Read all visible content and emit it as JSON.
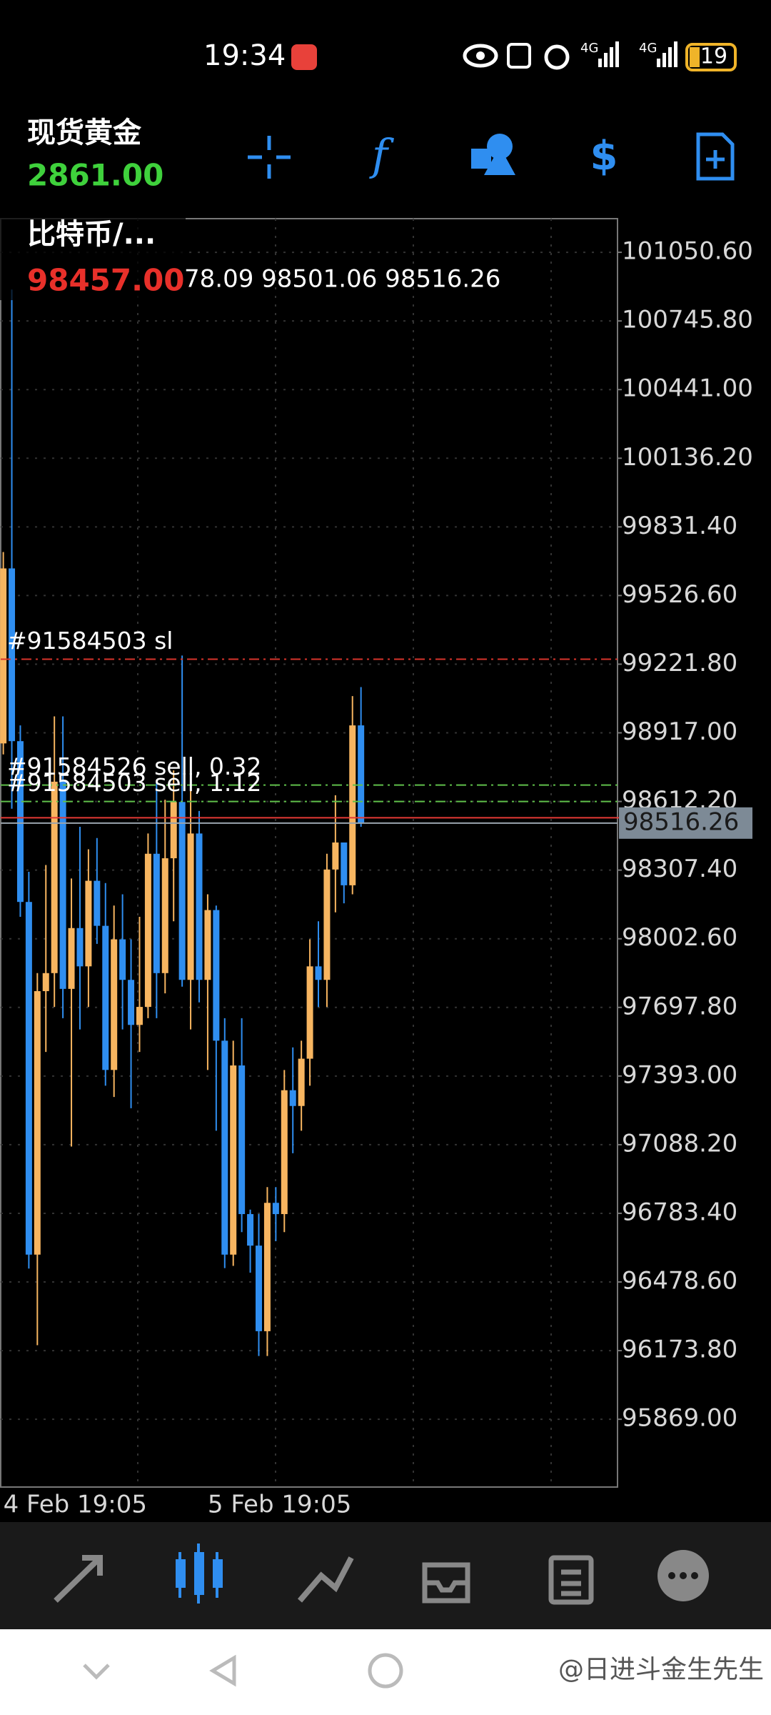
{
  "status_bar": {
    "time": "19:34",
    "network": [
      "4G",
      "4G"
    ],
    "battery": "19"
  },
  "header": {
    "symbols": [
      {
        "name": "现货黄金",
        "price": "2861.00"
      },
      {
        "name": "比特币/...",
        "price": "98457.00"
      }
    ]
  },
  "chart_data": {
    "type": "candlestick",
    "ohlc_text": "78.09 98501.06 98516.26",
    "categories": [
      "4 Feb 19:05",
      null,
      null,
      null,
      null,
      null,
      null,
      null,
      null,
      null,
      null,
      null,
      null,
      null,
      null,
      null,
      null,
      null,
      null,
      null,
      null,
      null,
      null,
      null,
      "5 Feb 19:05",
      null,
      null,
      null,
      null,
      null,
      null,
      null,
      null,
      null,
      null,
      null,
      null,
      null,
      null,
      null,
      null,
      null,
      null
    ],
    "open": [
      98870,
      99647,
      98880,
      98166,
      96600,
      97770,
      97850,
      98700,
      97780,
      98050,
      97880,
      98260,
      98060,
      97420,
      98000,
      97820,
      97620,
      97700,
      98380,
      97850,
      98360,
      98610,
      97820,
      98470,
      97820,
      98130,
      97550,
      96600,
      97440,
      96780,
      96640,
      96260,
      96830,
      96780,
      97330,
      97260,
      97470,
      97880,
      97820,
      98310,
      98430,
      98240,
      98950
    ],
    "high": [
      99720,
      100885,
      98950,
      98300,
      97850,
      98330,
      98990,
      98990,
      98270,
      98500,
      98400,
      98450,
      98250,
      98150,
      98200,
      98000,
      98100,
      98470,
      98700,
      98620,
      98750,
      99260,
      98660,
      98570,
      98200,
      98150,
      97650,
      97550,
      97650,
      96800,
      96780,
      96900,
      96900,
      97420,
      97520,
      97550,
      98000,
      98080,
      98380,
      98640,
      98430,
      99080,
      99120
    ],
    "low": [
      98821,
      98580,
      98100,
      96538,
      96198,
      97500,
      97700,
      97650,
      97080,
      97600,
      97700,
      97980,
      97350,
      97300,
      97600,
      97250,
      97500,
      97650,
      97650,
      97760,
      98080,
      97790,
      97600,
      97720,
      97420,
      97150,
      96540,
      96550,
      96700,
      96520,
      96150,
      96150,
      96660,
      96700,
      97050,
      97150,
      97350,
      97700,
      97700,
      98120,
      98160,
      98200,
      98500
    ],
    "close": [
      99647,
      98880,
      98166,
      96600,
      97770,
      97850,
      98700,
      97780,
      98050,
      97880,
      98260,
      98060,
      97420,
      98000,
      97820,
      97620,
      97700,
      98380,
      97850,
      98360,
      98610,
      97820,
      98470,
      97820,
      98130,
      97550,
      96600,
      97440,
      96780,
      96640,
      96260,
      96830,
      96780,
      97330,
      97260,
      97470,
      97880,
      97820,
      98310,
      98430,
      98240,
      98950,
      98516.26
    ],
    "up_color": "#f7b560",
    "down_color": "#2f8ef0",
    "ylim": [
      95568,
      101200
    ],
    "yticks": [
      {
        "value": 101050.6,
        "label": "101050.60"
      },
      {
        "value": 100745.8,
        "label": "100745.80"
      },
      {
        "value": 100441,
        "label": "100441.00"
      },
      {
        "value": 100136.2,
        "label": "100136.20"
      },
      {
        "value": 99831.4,
        "label": "99831.40"
      },
      {
        "value": 99526.6,
        "label": "99526.60"
      },
      {
        "value": 99221.8,
        "label": "99221.80"
      },
      {
        "value": 98917,
        "label": "98917.00"
      },
      {
        "value": 98612.2,
        "label": "98612.20"
      },
      {
        "value": 98307.4,
        "label": "98307.40"
      },
      {
        "value": 98002.6,
        "label": "98002.60"
      },
      {
        "value": 97697.8,
        "label": "97697.80"
      },
      {
        "value": 97393,
        "label": "97393.00"
      },
      {
        "value": 97088.2,
        "label": "97088.20"
      },
      {
        "value": 96783.4,
        "label": "96783.40"
      },
      {
        "value": 96478.6,
        "label": "96478.60"
      },
      {
        "value": 96173.8,
        "label": "96173.80"
      },
      {
        "value": 95869,
        "label": "95869.00"
      }
    ],
    "grid": true,
    "levels": [
      {
        "value": 99244,
        "label": "#91584503 sl",
        "color": "#d9342b"
      },
      {
        "value": 98685,
        "label": "#91584526 sell, 0.32",
        "color": "#5fbf4a"
      },
      {
        "value": 98612,
        "label": "#91584503 sell, 1.12",
        "color": "#5fbf4a"
      },
      {
        "value": 98540,
        "color": "#e53935"
      }
    ],
    "last_price": 98516.26
  },
  "watermark": "@日进斗金生先生"
}
